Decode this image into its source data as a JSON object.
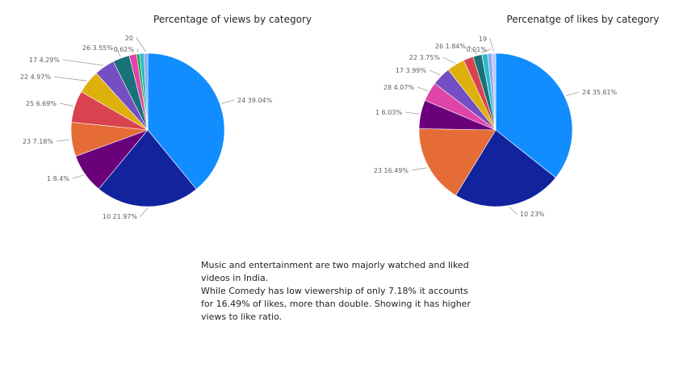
{
  "chart_data": [
    {
      "type": "pie",
      "title": "Percentage of views by category",
      "slices": [
        {
          "category": "24",
          "value": 39.04,
          "label": "24 39.04%"
        },
        {
          "category": "10",
          "value": 21.97,
          "label": "10 21.97%"
        },
        {
          "category": "1",
          "value": 8.4,
          "label": "1 8.4%"
        },
        {
          "category": "23",
          "value": 7.18,
          "label": "23 7.18%"
        },
        {
          "category": "25",
          "value": 6.69,
          "label": "25 6.69%"
        },
        {
          "category": "22",
          "value": 4.97,
          "label": "22 4.97%"
        },
        {
          "category": "17",
          "value": 4.29,
          "label": "17 4.29%"
        },
        {
          "category": "26",
          "value": 3.55,
          "label": "26 3.55%"
        },
        {
          "category": "",
          "value": 1.56,
          "label": ""
        },
        {
          "category": "",
          "value": 0.62,
          "label": "0.62%"
        },
        {
          "category": "",
          "value": 0.9,
          "label": ""
        },
        {
          "category": "20",
          "value": 0.8,
          "label": "20"
        }
      ],
      "colors": [
        "#118DFF",
        "#12239E",
        "#6B007B",
        "#E66C37",
        "#D9434F",
        "#DDB00B",
        "#744EC2",
        "#197278",
        "#E044A7",
        "#1AAB40",
        "#2BBACB",
        "#8FA9F0"
      ]
    },
    {
      "type": "pie",
      "title": "Percenatge of likes by category",
      "slices": [
        {
          "category": "24",
          "value": 35.61,
          "label": "24 35.61%"
        },
        {
          "category": "10",
          "value": 23,
          "label": "10 23%"
        },
        {
          "category": "23",
          "value": 16.49,
          "label": "23 16.49%"
        },
        {
          "category": "1",
          "value": 6.03,
          "label": "1 6.03%"
        },
        {
          "category": "28",
          "value": 4.07,
          "label": "28 4.07%"
        },
        {
          "category": "17",
          "value": 3.99,
          "label": "17 3.99%"
        },
        {
          "category": "22",
          "value": 3.75,
          "label": "22 3.75%"
        },
        {
          "category": "",
          "value": 2.1,
          "label": ""
        },
        {
          "category": "26",
          "value": 1.84,
          "label": "26 1.84%"
        },
        {
          "category": "",
          "value": 0.01,
          "label": "0.01%"
        },
        {
          "category": "",
          "value": 1.2,
          "label": ""
        },
        {
          "category": "",
          "value": 0.9,
          "label": ""
        },
        {
          "category": "19",
          "value": 0.8,
          "label": "19"
        }
      ],
      "colors": [
        "#118DFF",
        "#12239E",
        "#E66C37",
        "#6B007B",
        "#E044A7",
        "#744EC2",
        "#DDB00B",
        "#D9434F",
        "#197278",
        "#1AAB40",
        "#2BBACB",
        "#8FA9F0",
        "#B8C7F5"
      ]
    }
  ],
  "note": {
    "line1": "Music and entertainment are two majorly watched and liked videos in India.",
    "line2": "While Comedy has low viewership of only 7.18% it accounts for 16.49% of likes, more than double. Showing it has higher views to like ratio."
  }
}
